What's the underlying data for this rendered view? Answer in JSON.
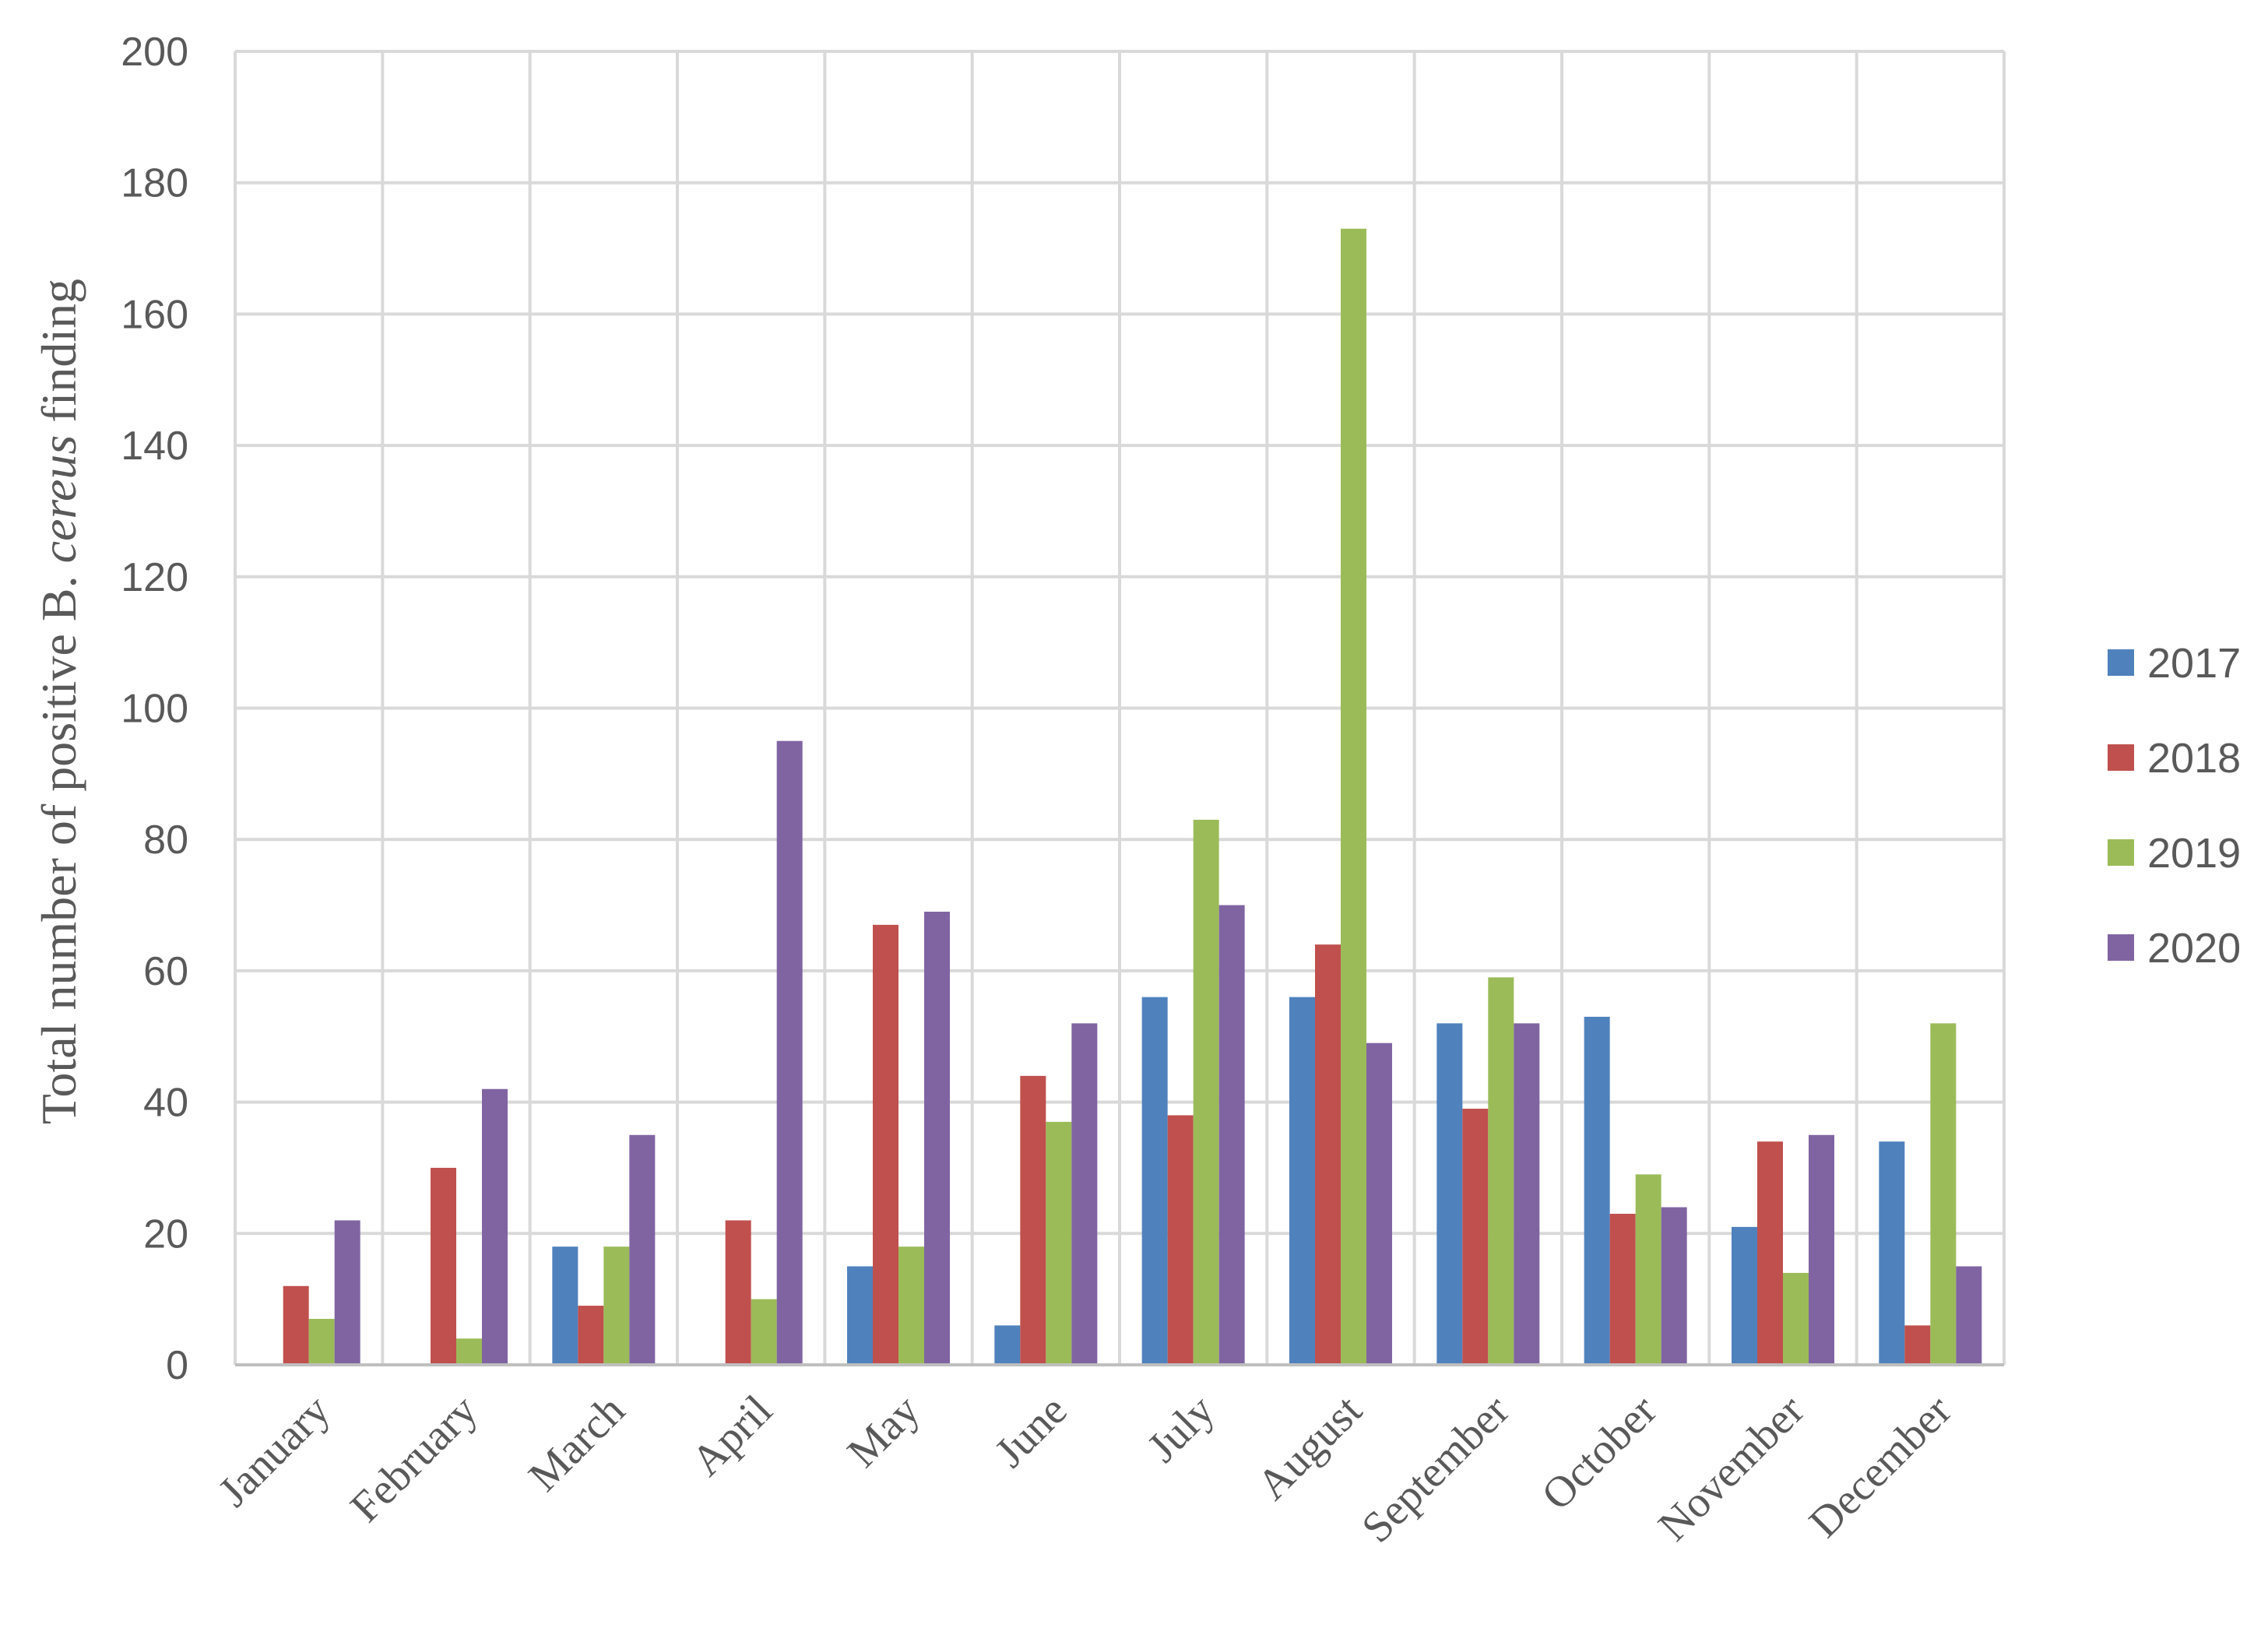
{
  "chart_data": {
    "type": "bar",
    "title": "",
    "xlabel": "",
    "ylabel": {
      "prefix": "Total number of positive B. ",
      "italic": "cereus",
      "suffix": " finding"
    },
    "ylim": [
      0,
      200
    ],
    "yticks": [
      "0",
      "20",
      "40",
      "60",
      "80",
      "100",
      "120",
      "140",
      "160",
      "180",
      "200"
    ],
    "grid": true,
    "legend_position": "right",
    "categories": [
      "January",
      "February",
      "March",
      "April",
      "May",
      "June",
      "July",
      "August",
      "September",
      "October",
      "November",
      "December"
    ],
    "series": [
      {
        "name": "2017",
        "color": "#4f81bd",
        "values": [
          0,
          0,
          18,
          0,
          15,
          6,
          56,
          56,
          52,
          53,
          21,
          34
        ]
      },
      {
        "name": "2018",
        "color": "#c0504d",
        "values": [
          12,
          30,
          9,
          22,
          67,
          44,
          38,
          64,
          39,
          23,
          34,
          6
        ]
      },
      {
        "name": "2019",
        "color": "#9bbb59",
        "values": [
          7,
          4,
          18,
          10,
          18,
          37,
          83,
          173,
          59,
          29,
          14,
          52
        ]
      },
      {
        "name": "2020",
        "color": "#8064a2",
        "values": [
          22,
          42,
          35,
          95,
          69,
          52,
          70,
          49,
          52,
          24,
          35,
          15
        ]
      }
    ]
  }
}
